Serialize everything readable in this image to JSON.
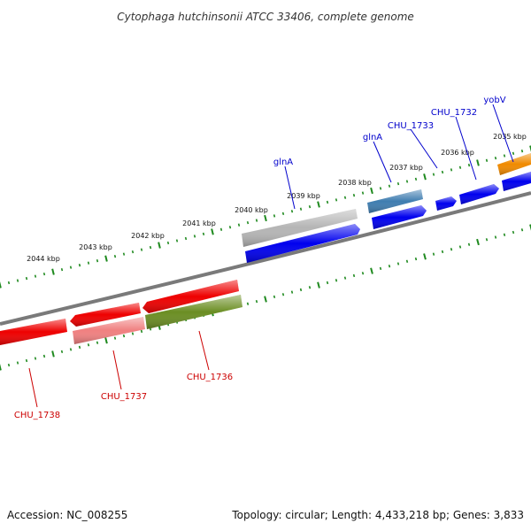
{
  "title": "Cytophaga hutchinsonii ATCC 33406, complete genome",
  "footer": {
    "accession": "Accession: NC_008255",
    "topology": "Topology: circular; Length: 4,433,218 bp; Genes: 3,833"
  },
  "colors": {
    "backbone": "#7a7a7a",
    "tick": "#1f8a1f",
    "forward_label": "#0000cc",
    "reverse_label": "#cc0000"
  },
  "tick_labels": [
    "2035 kbp",
    "2036 kbp",
    "2037 kbp",
    "2038 kbp",
    "2039 kbp",
    "2040 kbp",
    "2041 kbp",
    "2042 kbp",
    "2043 kbp",
    "2044 kbp"
  ],
  "genes": [
    {
      "name": "CHU_1732",
      "strand": "+",
      "color": "#0000ee"
    },
    {
      "name": "CHU_1733",
      "strand": "+",
      "color": "#0000ee"
    },
    {
      "name": "glnA",
      "strand": "+",
      "color": "#3f7db0"
    },
    {
      "name": "glnA",
      "strand": "+",
      "color": "#b5b5b5"
    },
    {
      "name": "yobV",
      "strand": "+",
      "color": "#f08a00"
    },
    {
      "name": "CHU_1736",
      "strand": "-",
      "color": "#6b8e23"
    },
    {
      "name": "CHU_1737",
      "strand": "-",
      "color": "#f08080"
    },
    {
      "name": "CHU_1738",
      "strand": "-",
      "color": "#ee0000"
    }
  ]
}
